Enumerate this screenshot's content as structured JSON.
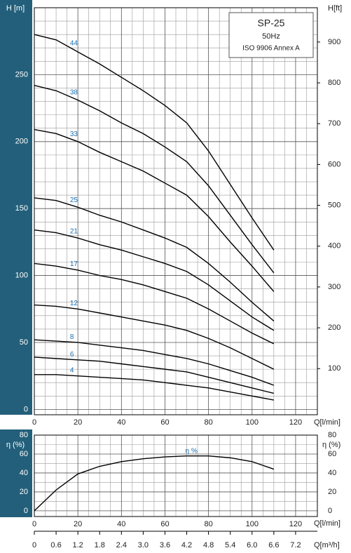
{
  "chart_data": [
    {
      "type": "line",
      "ylabel": "H [m]",
      "y2label": "H[ft]",
      "xlabel": "Q[l/min]",
      "annotations": [
        "SP-25",
        "50Hz",
        "ISO 9906 Annex A"
      ],
      "x": [
        0,
        10,
        20,
        30,
        40,
        50,
        60,
        70,
        80,
        90,
        100,
        110
      ],
      "xlim": [
        0,
        130
      ],
      "xticks": [
        0,
        20,
        40,
        60,
        80,
        100,
        120
      ],
      "ylim": [
        -4,
        300
      ],
      "yticks": [
        0,
        50,
        100,
        150,
        200,
        250
      ],
      "y2lim": [
        -13,
        984
      ],
      "y2ticks": [
        100,
        200,
        300,
        400,
        500,
        600,
        700,
        800,
        900
      ],
      "grid": true,
      "x_grid_subdivisions": 4,
      "y_grid_subdivisions": 5,
      "label_color": "#1a6fb0",
      "label_x": 17,
      "series": [
        {
          "name": "44",
          "color": "#000000",
          "values": [
            280,
            276,
            267,
            258,
            248,
            238,
            227,
            214,
            193,
            168,
            143,
            119
          ]
        },
        {
          "name": "38",
          "color": "#000000",
          "values": [
            242,
            238,
            231,
            223,
            214,
            206,
            196,
            185,
            167,
            145,
            123,
            102
          ]
        },
        {
          "name": "33",
          "color": "#000000",
          "values": [
            209,
            206,
            200,
            192,
            185,
            178,
            169,
            160,
            144,
            125,
            107,
            88
          ]
        },
        {
          "name": "25",
          "color": "#000000",
          "values": [
            158,
            156,
            151,
            145,
            140,
            134,
            128,
            121,
            109,
            95,
            80,
            66
          ]
        },
        {
          "name": "21",
          "color": "#000000",
          "values": [
            134,
            132,
            128,
            123,
            119,
            114,
            109,
            103,
            93,
            81,
            69,
            59
          ]
        },
        {
          "name": "17",
          "color": "#000000",
          "values": [
            109,
            107,
            104,
            100,
            97,
            93,
            88,
            83,
            75,
            66,
            57,
            49
          ]
        },
        {
          "name": "12",
          "color": "#000000",
          "values": [
            78,
            77,
            75,
            72,
            69,
            66,
            63,
            59,
            53,
            46,
            38,
            30
          ]
        },
        {
          "name": "8",
          "color": "#000000",
          "values": [
            52,
            51,
            50,
            48,
            46,
            44,
            41,
            38,
            34,
            29,
            24,
            18
          ]
        },
        {
          "name": "6",
          "color": "#000000",
          "values": [
            39,
            38,
            37,
            36,
            34,
            32,
            30,
            28,
            24,
            20,
            16,
            12
          ]
        },
        {
          "name": "4",
          "color": "#000000",
          "values": [
            26,
            26,
            25,
            24,
            23,
            22,
            20,
            18,
            16,
            13,
            10,
            7
          ]
        }
      ]
    },
    {
      "type": "line",
      "ylabel": "η (%)",
      "xlabel": "Q[l/min]",
      "x2label": "Q[m³/h]",
      "x": [
        0,
        10,
        20,
        30,
        40,
        50,
        60,
        70,
        80,
        90,
        100,
        110
      ],
      "xlim": [
        0,
        130
      ],
      "xticks": [
        0,
        20,
        40,
        60,
        80,
        100,
        120
      ],
      "ylim": [
        -6,
        80
      ],
      "yticks": [
        0,
        20,
        40,
        60,
        80
      ],
      "x2lim": [
        0,
        7.8
      ],
      "x2ticks": [
        0,
        0.6,
        1.2,
        1.8,
        2.4,
        {
          "value": 3,
          "label": "3.0"
        },
        3.6,
        4.2,
        4.8,
        5.4,
        {
          "value": 6,
          "label": "6.0"
        },
        6.6,
        7.2
      ],
      "grid": true,
      "x_grid_subdivisions": 4,
      "y_grid_subdivisions": 2,
      "label_color": "#1a6fb0",
      "label_x": 70,
      "series": [
        {
          "name": "η %",
          "color": "#000000",
          "values": [
            0,
            22,
            39,
            47,
            52,
            55,
            57,
            58,
            58,
            56,
            52,
            44
          ]
        }
      ]
    }
  ]
}
